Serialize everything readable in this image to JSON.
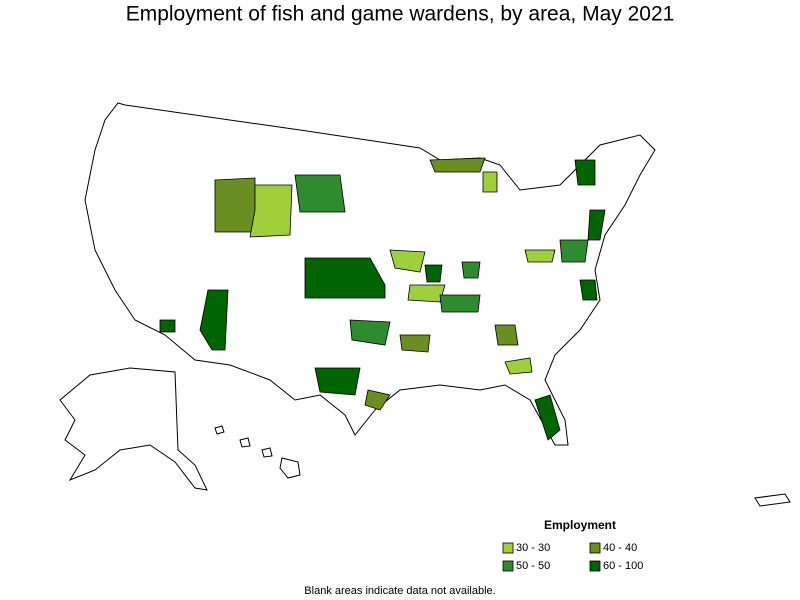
{
  "title": "Employment of fish and game wardens, by area, May 2021",
  "legend": {
    "title": "Employment",
    "items": [
      {
        "label": "30 - 30",
        "color": "#9fcf3a"
      },
      {
        "label": "40 - 40",
        "color": "#6b8e23"
      },
      {
        "label": "50 - 50",
        "color": "#2e8b2e"
      },
      {
        "label": "60 - 100",
        "color": "#006400"
      }
    ]
  },
  "footnote": "Blank areas indicate data not available."
}
